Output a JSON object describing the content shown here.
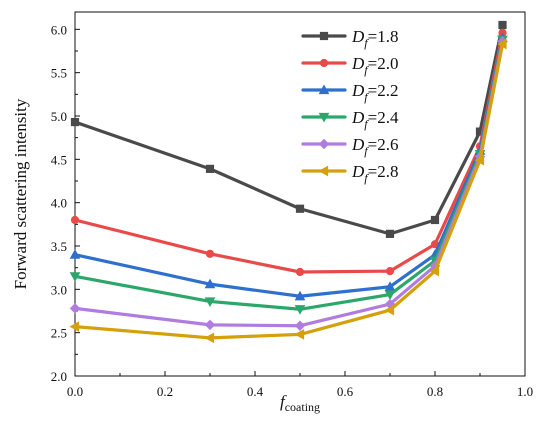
{
  "chart_data": {
    "type": "line",
    "title": "",
    "xlabel": {
      "main": "f",
      "sub": "coating"
    },
    "ylabel": "Forward scattering intensity",
    "xlim": [
      0.0,
      1.0
    ],
    "ylim": [
      2.0,
      6.2
    ],
    "xticks": [
      0.0,
      0.2,
      0.4,
      0.6,
      0.8,
      1.0
    ],
    "xtick_labels": [
      "0.0",
      "0.2",
      "0.4",
      "0.6",
      "0.8",
      "1.0"
    ],
    "yticks": [
      2.0,
      2.5,
      3.0,
      3.5,
      4.0,
      4.5,
      5.0,
      5.5,
      6.0
    ],
    "ytick_labels": [
      "2.0",
      "2.5",
      "3.0",
      "3.5",
      "4.0",
      "4.5",
      "5.0",
      "5.5",
      "6.0"
    ],
    "grid": false,
    "legend_position": "top-right",
    "x": [
      0.0,
      0.3,
      0.5,
      0.7,
      0.8,
      0.9,
      0.95
    ],
    "series": [
      {
        "name": "D_f=1.8",
        "label_main": "D",
        "label_sub": "f",
        "label_value": "=1.8",
        "color": "#4a4a4a",
        "marker": "square",
        "values": [
          4.93,
          4.39,
          3.93,
          3.64,
          3.8,
          4.82,
          6.05
        ]
      },
      {
        "name": "D_f=2.0",
        "label_main": "D",
        "label_sub": "f",
        "label_value": "=2.0",
        "color": "#e84a4a",
        "marker": "circle",
        "values": [
          3.8,
          3.41,
          3.2,
          3.21,
          3.52,
          4.65,
          5.96
        ]
      },
      {
        "name": "D_f=2.2",
        "label_main": "D",
        "label_sub": "f",
        "label_value": "=2.2",
        "color": "#2f6fcd",
        "marker": "triangle-up",
        "values": [
          3.4,
          3.06,
          2.92,
          3.03,
          3.4,
          4.6,
          5.9
        ]
      },
      {
        "name": "D_f=2.4",
        "label_main": "D",
        "label_sub": "f",
        "label_value": "=2.4",
        "color": "#2ca66a",
        "marker": "triangle-down",
        "values": [
          3.15,
          2.86,
          2.77,
          2.94,
          3.33,
          4.56,
          5.88
        ]
      },
      {
        "name": "D_f=2.6",
        "label_main": "D",
        "label_sub": "f",
        "label_value": "=2.6",
        "color": "#b07ce0",
        "marker": "diamond",
        "values": [
          2.78,
          2.59,
          2.58,
          2.83,
          3.27,
          4.53,
          5.86
        ]
      },
      {
        "name": "D_f=2.8",
        "label_main": "D",
        "label_sub": "f",
        "label_value": "=2.8",
        "color": "#d4a10a",
        "marker": "triangle-left",
        "values": [
          2.57,
          2.44,
          2.48,
          2.76,
          3.21,
          4.49,
          5.83
        ]
      }
    ]
  }
}
